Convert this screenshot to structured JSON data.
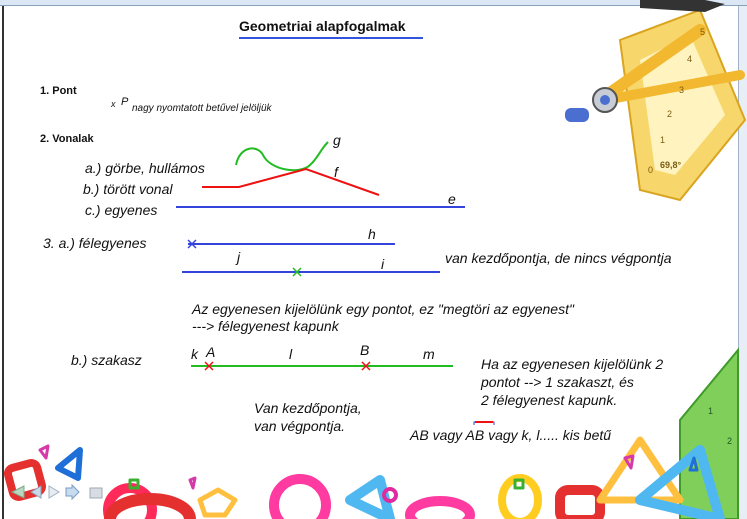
{
  "title": "Geometriai alapfogalmak",
  "section1": {
    "heading": "1. Pont",
    "marker": "x",
    "point_label": "P",
    "note": "nagy nyomtatott betűvel jelöljük"
  },
  "section2": {
    "heading": "2. Vonalak",
    "items": [
      "a.) görbe, hullámos",
      "b.) törött vonal",
      "c.) egyenes"
    ],
    "labels": {
      "g": "g",
      "f": "f",
      "e": "e"
    }
  },
  "section3": {
    "a_label": "3. a.) félegyenes",
    "h": "h",
    "j": "j",
    "i": "i",
    "a_desc": "van kezdőpontja, de nincs végpontja",
    "a_expl": [
      "Az egyenesen kijelölünk egy pontot, ez \"megtöri az egyenest\"",
      "--->  félegyenest kapunk"
    ],
    "b_label": "b.) szakasz",
    "k": "k",
    "A": "A",
    "l": "l",
    "B": "B",
    "m": "m",
    "b_right": [
      "Ha az egyenesen kijelölünk 2",
      "pontot --> 1 szakaszt, és",
      "2 félegyenest kapunk."
    ],
    "b_desc": [
      "Van kezdőpontja,",
      "van végpontja."
    ],
    "notation": {
      "p1": "AB vagy ",
      "p2": "AB",
      "p3": " vagy   k, l..... kis betű"
    }
  },
  "ruler": {
    "numbers": [
      "5",
      "4",
      "3",
      "2",
      "1",
      "0"
    ],
    "angle": "69,8°",
    "triangle_numbers": [
      "1",
      "2"
    ]
  },
  "colors": {
    "green": "#22bb22",
    "red": "#ee1111",
    "blue": "#3344dd"
  },
  "nav_icons": [
    "first-icon",
    "prev-icon",
    "next-icon",
    "forward-icon",
    "menu-icon"
  ]
}
